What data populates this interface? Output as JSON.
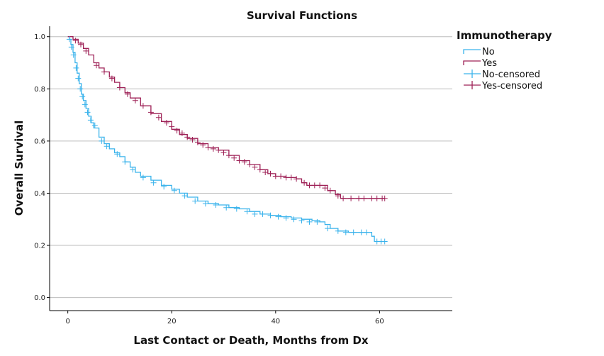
{
  "chart_data": {
    "type": "line",
    "title": "Survival Functions",
    "xlabel": "Last Contact or Death, Months from Dx",
    "ylabel": "Overall Survival",
    "xlim": [
      -3.5,
      74
    ],
    "ylim": [
      -0.05,
      1.04
    ],
    "x_ticks": [
      0,
      20,
      40,
      60
    ],
    "x_tick_labels": [
      "0",
      "20",
      "40",
      "60"
    ],
    "y_ticks": [
      0.0,
      0.2,
      0.4,
      0.6,
      0.8,
      1.0
    ],
    "y_tick_labels": [
      "0.0",
      "0.2",
      "0.4",
      "0.6",
      "0.8",
      "1.0"
    ],
    "grid": "horizontal",
    "legend": {
      "title": "Immunotherapy",
      "position": "top-right",
      "entries": [
        "No",
        "Yes",
        "No-censored",
        "Yes-censored"
      ]
    },
    "colors": {
      "No": "#3ab3ec",
      "Yes": "#9e2056",
      "axis": "#000000",
      "grid": "#bdbdbd"
    },
    "series": [
      {
        "name": "No",
        "x": [
          0,
          0.3,
          0.6,
          1.0,
          1.4,
          1.8,
          2.2,
          2.6,
          3.0,
          3.5,
          4.0,
          4.5,
          5.0,
          6.0,
          7.0,
          8.0,
          9.0,
          10.0,
          11.0,
          12.0,
          13.0,
          14.0,
          16.0,
          18.0,
          20.0,
          21.5,
          23.0,
          25.0,
          27.0,
          29.0,
          31.0,
          33.0,
          35.0,
          37.0,
          39.0,
          41.0,
          43.0,
          45.0,
          47.0,
          48.5,
          49.5,
          50.5,
          52.0,
          54.0,
          56.0,
          58.0,
          58.5,
          59.0,
          61.0
        ],
        "y": [
          1.0,
          0.99,
          0.97,
          0.94,
          0.9,
          0.86,
          0.82,
          0.78,
          0.755,
          0.725,
          0.695,
          0.67,
          0.65,
          0.615,
          0.59,
          0.57,
          0.555,
          0.54,
          0.52,
          0.5,
          0.48,
          0.465,
          0.45,
          0.43,
          0.415,
          0.4,
          0.385,
          0.37,
          0.36,
          0.355,
          0.345,
          0.34,
          0.33,
          0.32,
          0.315,
          0.31,
          0.305,
          0.3,
          0.295,
          0.29,
          0.28,
          0.265,
          0.255,
          0.25,
          0.25,
          0.25,
          0.235,
          0.215,
          0.215
        ],
        "censored_x": [
          0.3,
          0.7,
          1.1,
          1.6,
          2.0,
          2.4,
          2.8,
          3.3,
          3.8,
          4.4,
          5.2,
          6.5,
          7.5,
          9.5,
          11.0,
          12.5,
          14.5,
          16.5,
          18.5,
          20.5,
          22.5,
          24.5,
          26.5,
          28.5,
          30.5,
          32.5,
          34.5,
          36.0,
          37.5,
          39.0,
          40.5,
          42.0,
          43.5,
          45.0,
          46.5,
          48.0,
          50.0,
          52.0,
          53.5,
          55.0,
          56.5,
          57.5,
          59.5,
          60.3,
          61.0
        ],
        "censored_y": [
          0.99,
          0.96,
          0.93,
          0.88,
          0.84,
          0.8,
          0.77,
          0.74,
          0.71,
          0.68,
          0.66,
          0.6,
          0.58,
          0.55,
          0.52,
          0.49,
          0.46,
          0.44,
          0.425,
          0.41,
          0.39,
          0.37,
          0.36,
          0.355,
          0.345,
          0.34,
          0.33,
          0.32,
          0.32,
          0.315,
          0.31,
          0.305,
          0.3,
          0.295,
          0.29,
          0.29,
          0.265,
          0.255,
          0.25,
          0.25,
          0.25,
          0.25,
          0.215,
          0.215,
          0.215
        ]
      },
      {
        "name": "Yes",
        "x": [
          0,
          1.0,
          2.0,
          3.0,
          4.0,
          5.0,
          6.0,
          7.0,
          8.0,
          9.0,
          10.0,
          11.0,
          12.0,
          14.0,
          16.0,
          18.0,
          20.0,
          21.5,
          23.0,
          25.0,
          27.0,
          29.0,
          31.0,
          33.0,
          35.0,
          37.0,
          38.5,
          40.0,
          42.0,
          44.0,
          45.0,
          46.0,
          48.0,
          50.0,
          51.5,
          52.5,
          54.0,
          56.0,
          61.0
        ],
        "y": [
          1.0,
          0.99,
          0.975,
          0.955,
          0.93,
          0.9,
          0.88,
          0.865,
          0.845,
          0.825,
          0.805,
          0.785,
          0.765,
          0.735,
          0.705,
          0.675,
          0.645,
          0.625,
          0.61,
          0.59,
          0.575,
          0.565,
          0.545,
          0.525,
          0.51,
          0.49,
          0.475,
          0.465,
          0.46,
          0.455,
          0.44,
          0.43,
          0.43,
          0.41,
          0.395,
          0.38,
          0.38,
          0.38,
          0.38
        ],
        "censored_x": [
          1.5,
          2.5,
          3.5,
          5.5,
          7.0,
          8.5,
          10.0,
          11.5,
          13.0,
          14.5,
          16.0,
          17.5,
          19.0,
          20.0,
          21.0,
          22.0,
          23.0,
          24.0,
          25.0,
          26.0,
          27.0,
          28.0,
          29.0,
          30.0,
          31.0,
          32.0,
          33.0,
          34.0,
          35.0,
          36.0,
          37.0,
          38.0,
          39.0,
          40.0,
          41.0,
          42.0,
          43.0,
          44.0,
          45.5,
          46.5,
          47.5,
          48.5,
          49.5,
          50.5,
          52.0,
          53.0,
          54.5,
          56.0,
          57.0,
          58.5,
          59.5,
          60.5,
          61.0
        ],
        "censored_y": [
          0.985,
          0.97,
          0.945,
          0.89,
          0.865,
          0.84,
          0.805,
          0.78,
          0.755,
          0.735,
          0.71,
          0.69,
          0.67,
          0.655,
          0.64,
          0.63,
          0.615,
          0.605,
          0.595,
          0.585,
          0.575,
          0.57,
          0.565,
          0.555,
          0.545,
          0.535,
          0.525,
          0.52,
          0.51,
          0.5,
          0.49,
          0.48,
          0.475,
          0.465,
          0.465,
          0.46,
          0.46,
          0.455,
          0.44,
          0.43,
          0.43,
          0.43,
          0.42,
          0.41,
          0.39,
          0.38,
          0.38,
          0.38,
          0.38,
          0.38,
          0.38,
          0.38,
          0.38
        ]
      }
    ]
  }
}
